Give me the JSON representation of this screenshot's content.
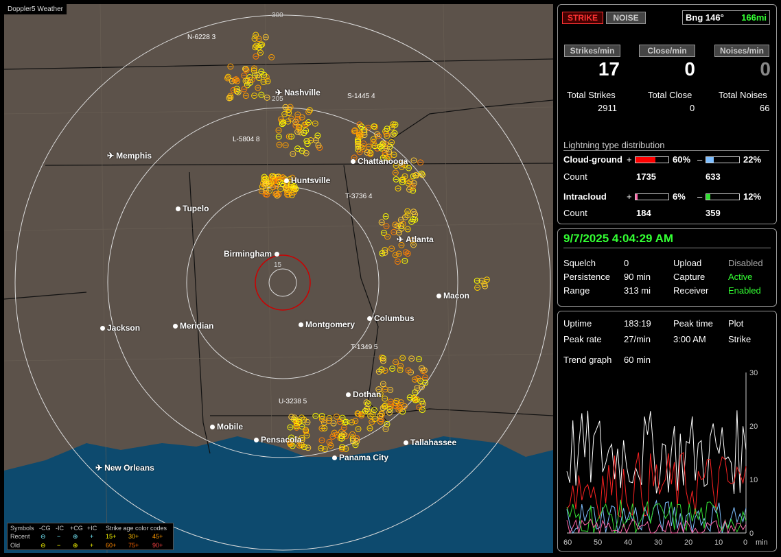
{
  "map": {
    "title": "Doppler5 Weather",
    "ring_labels": [
      "300",
      "205",
      "15"
    ],
    "cities": [
      {
        "name": "Nashville",
        "icon": "plane"
      },
      {
        "name": "Memphis",
        "icon": "plane"
      },
      {
        "name": "Chattanooga",
        "icon": "dot"
      },
      {
        "name": "Huntsville",
        "icon": "dot"
      },
      {
        "name": "Tupelo",
        "icon": "dot"
      },
      {
        "name": "Atlanta",
        "icon": "plane"
      },
      {
        "name": "Birmingham",
        "icon": "dot"
      },
      {
        "name": "Macon",
        "icon": "dot"
      },
      {
        "name": "Jackson",
        "icon": "dot"
      },
      {
        "name": "Meridian",
        "icon": "dot"
      },
      {
        "name": "Montgomery",
        "icon": "dot"
      },
      {
        "name": "Columbus",
        "icon": "dot"
      },
      {
        "name": "Dothan",
        "icon": "dot"
      },
      {
        "name": "Mobile",
        "icon": "dot"
      },
      {
        "name": "Pensacola",
        "icon": "dot"
      },
      {
        "name": "Tallahassee",
        "icon": "dot"
      },
      {
        "name": "Panama City",
        "icon": "dot"
      },
      {
        "name": "New Orleans",
        "icon": "plane"
      }
    ],
    "tracks": [
      {
        "id": "N-6228",
        "n": "3"
      },
      {
        "id": "S-1445",
        "n": "4"
      },
      {
        "id": "L-5804",
        "n": "8"
      },
      {
        "id": "T-3736",
        "n": "4"
      },
      {
        "id": "T-1349",
        "n": "5"
      },
      {
        "id": "U-3238",
        "n": "5"
      }
    ],
    "legend": {
      "symbols_label": "Symbols",
      "cols": [
        "-CG",
        "-IC",
        "+CG",
        "+IC"
      ],
      "age_title": "Strike age color codes",
      "recent_label": "Recent",
      "old_label": "Old",
      "recent_ages": [
        "15+",
        "30+",
        "45+"
      ],
      "old_ages": [
        "60+",
        "75+",
        "90+"
      ]
    }
  },
  "top": {
    "strike_btn": "STRIKE",
    "noise_btn": "NOISE",
    "bearing": "Bng 146°",
    "distance": "166mi",
    "strikes_min_label": "Strikes/min",
    "close_min_label": "Close/min",
    "noises_min_label": "Noises/min",
    "strikes_min": "17",
    "close_min": "0",
    "noises_min": "0",
    "total_strikes_label": "Total Strikes",
    "total_close_label": "Total Close",
    "total_noises_label": "Total Noises",
    "total_strikes": "2911",
    "total_close": "0",
    "total_noises": "66",
    "dist_title": "Lightning type distribution",
    "cg_label": "Cloud-ground",
    "ic_label": "Intracloud",
    "count_label": "Count",
    "cg_pos_pct": "60%",
    "cg_neg_pct": "22%",
    "ic_pos_pct": "6%",
    "ic_neg_pct": "12%",
    "cg_pos_count": "1735",
    "cg_neg_count": "633",
    "ic_pos_count": "184",
    "ic_neg_count": "359",
    "plus": "+",
    "minus": "–",
    "cg_pos_fraction": 0.6,
    "cg_neg_fraction": 0.22,
    "ic_pos_fraction": 0.06,
    "ic_neg_fraction": 0.12
  },
  "mid": {
    "datetime": "9/7/2025 4:04:29 AM",
    "squelch_label": "Squelch",
    "squelch": "0",
    "persistence_label": "Persistence",
    "persistence": "90 min",
    "range_label": "Range",
    "range": "313 mi",
    "upload_label": "Upload",
    "upload": "Disabled",
    "capture_label": "Capture",
    "capture": "Active",
    "receiver_label": "Receiver",
    "receiver": "Enabled"
  },
  "bottom": {
    "uptime_label": "Uptime",
    "uptime": "183:19",
    "peak_time_label": "Peak time",
    "plot_label": "Plot",
    "peak_rate_label": "Peak rate",
    "peak_rate": "27/min",
    "peak_time": "3:00 AM",
    "plot": "Strike",
    "trend_label": "Trend graph",
    "trend": "60 min",
    "y_ticks": [
      "30",
      "20",
      "10",
      "0"
    ],
    "x_ticks": [
      "60",
      "50",
      "40",
      "30",
      "20",
      "10",
      "0",
      "min"
    ]
  },
  "colors": {
    "land": "#5c524a",
    "water": "#0d4a6e",
    "strike_red": "#cc0000",
    "cg_pos": "#ff0000",
    "cg_neg": "#7fbfff",
    "ic_pos": "#ff66aa",
    "ic_neg": "#33dd33",
    "accent_green": "#33ff33"
  }
}
